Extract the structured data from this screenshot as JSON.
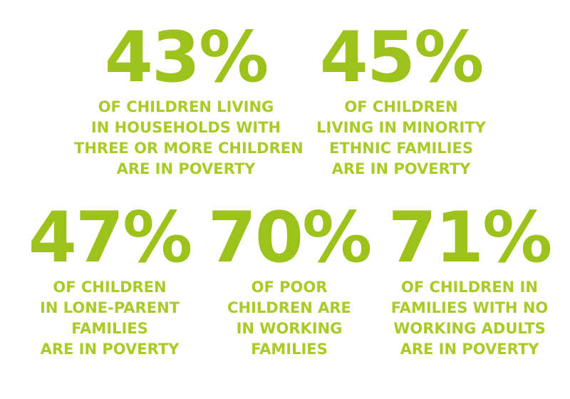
{
  "stats": [
    {
      "value": "43%",
      "lines": [
        "OF CHILDREN LIVING",
        "IN HOUSEHOLDS WITH",
        "THREE OR MORE CHILDREN",
        "ARE IN POVERTY"
      ]
    },
    {
      "value": "45%",
      "lines": [
        "OF CHILDREN",
        "LIVING IN MINORITY",
        "ETHNIC FAMILIES",
        "ARE IN POVERTY"
      ]
    },
    {
      "value": "47%",
      "lines": [
        "OF CHILDREN",
        "IN LONE-PARENT",
        "FAMILIES",
        "ARE IN POVERTY"
      ]
    },
    {
      "value": "70%",
      "lines": [
        "OF POOR",
        "CHILDREN ARE",
        "IN WORKING",
        "FAMILIES"
      ]
    },
    {
      "value": "71%",
      "lines": [
        "OF CHILDREN IN",
        "FAMILIES WITH NO",
        "WORKING ADULTS",
        "ARE IN POVERTY"
      ]
    }
  ],
  "colors": {
    "accent": "#9dc21b",
    "background": "#ffffff"
  }
}
